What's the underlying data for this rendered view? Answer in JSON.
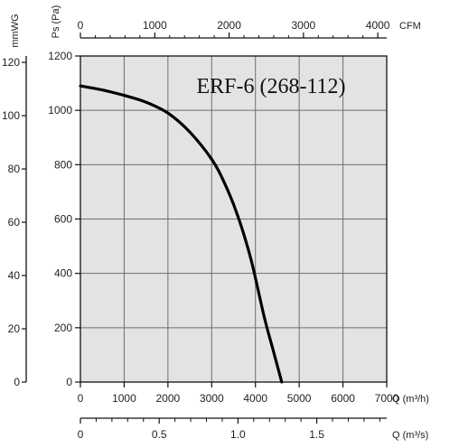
{
  "chart_data": {
    "type": "line",
    "title": "ERF-6 (268-112)",
    "grid": true,
    "series": [
      {
        "x": [
          0,
          500,
          1000,
          1500,
          2000,
          2500,
          3000,
          3300,
          3600,
          3900,
          4200,
          4400,
          4600
        ],
        "values": [
          1090,
          1075,
          1055,
          1030,
          990,
          920,
          820,
          730,
          610,
          450,
          240,
          120,
          0
        ]
      }
    ],
    "axes": {
      "q_m3h": {
        "label": "Q (m³/h)",
        "min": 0,
        "max": 7000,
        "ticks": [
          0,
          1000,
          2000,
          3000,
          4000,
          5000,
          6000,
          7000
        ]
      },
      "q_m3s": {
        "label": "Q (m³/s)",
        "min": 0,
        "max": 1.944,
        "ticks": [
          0,
          0.5,
          1.0,
          1.5
        ],
        "tick_labels": [
          "0",
          "0.5",
          "1.0",
          "1.5"
        ]
      },
      "cfm": {
        "label": "CFM",
        "min": 0,
        "max": 4120,
        "ticks": [
          0,
          1000,
          2000,
          3000,
          4000
        ]
      },
      "ps_pa": {
        "label": "Ps (Pa)",
        "min": 0,
        "max": 1200,
        "ticks": [
          0,
          200,
          400,
          600,
          800,
          1000,
          1200
        ]
      },
      "mmwg": {
        "label": "mmWG",
        "min": 0,
        "max": 122.4,
        "ticks": [
          0,
          20,
          40,
          60,
          80,
          100,
          120
        ]
      }
    }
  }
}
